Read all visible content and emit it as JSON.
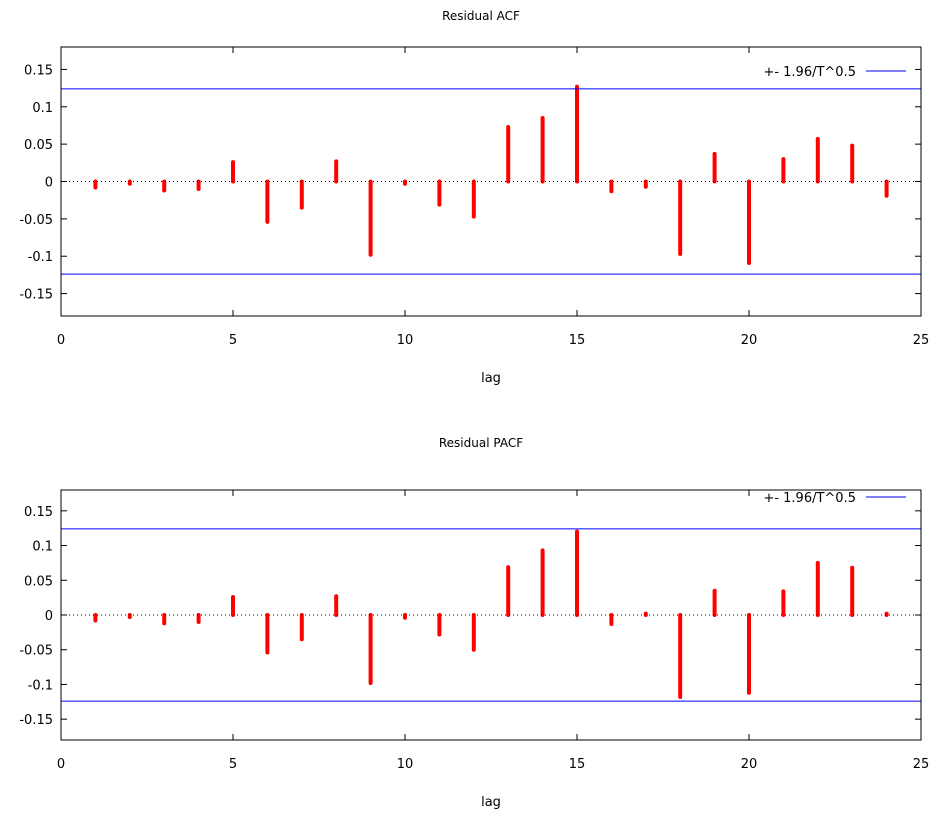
{
  "chart_data": [
    {
      "type": "bar",
      "title": "Residual ACF",
      "xlabel": "lag",
      "ylabel": "",
      "xlim": [
        0,
        25
      ],
      "ylim": [
        -0.18,
        0.18
      ],
      "xticks": [
        "0",
        "5",
        "10",
        "15",
        "20",
        "25"
      ],
      "yticks": [
        "0.15",
        "0.1",
        "0.05",
        "0",
        "-0.05",
        "-0.1",
        "-0.15"
      ],
      "x": [
        1,
        2,
        3,
        4,
        5,
        6,
        7,
        8,
        9,
        10,
        11,
        12,
        13,
        14,
        15,
        16,
        17,
        18,
        19,
        20,
        21,
        22,
        23,
        24
      ],
      "values": [
        -0.008,
        -0.003,
        -0.012,
        -0.01,
        0.026,
        -0.054,
        -0.035,
        0.027,
        -0.098,
        -0.003,
        -0.031,
        -0.047,
        0.073,
        0.085,
        0.127,
        -0.013,
        -0.007,
        -0.097,
        0.037,
        -0.109,
        0.03,
        0.057,
        0.048,
        -0.019
      ],
      "bar_color": "#ff0000",
      "confidence_band": {
        "label": "+- 1.96/T^0.5",
        "value": 0.124,
        "color": "#0000ff"
      },
      "zero_line": "dotted",
      "legend_position": "top-right",
      "grid": false
    },
    {
      "type": "bar",
      "title": "Residual PACF",
      "xlabel": "lag",
      "ylabel": "",
      "xlim": [
        0,
        25
      ],
      "ylim": [
        -0.18,
        0.18
      ],
      "xticks": [
        "0",
        "5",
        "10",
        "15",
        "20",
        "25"
      ],
      "yticks": [
        "0.15",
        "0.1",
        "0.05",
        "0",
        "-0.05",
        "-0.1",
        "-0.15"
      ],
      "x": [
        1,
        2,
        3,
        4,
        5,
        6,
        7,
        8,
        9,
        10,
        11,
        12,
        13,
        14,
        15,
        16,
        17,
        18,
        19,
        20,
        21,
        22,
        23,
        24
      ],
      "values": [
        -0.008,
        -0.003,
        -0.012,
        -0.01,
        0.026,
        -0.054,
        -0.035,
        0.027,
        -0.098,
        -0.004,
        -0.028,
        -0.05,
        0.069,
        0.093,
        0.12,
        -0.013,
        0.002,
        -0.118,
        0.035,
        -0.112,
        0.034,
        0.075,
        0.068,
        0.002
      ],
      "bar_color": "#ff0000",
      "confidence_band": {
        "label": "+- 1.96/T^0.5",
        "value": 0.124,
        "color": "#0000ff"
      },
      "zero_line": "dotted",
      "legend_position": "top-right",
      "grid": false
    }
  ]
}
